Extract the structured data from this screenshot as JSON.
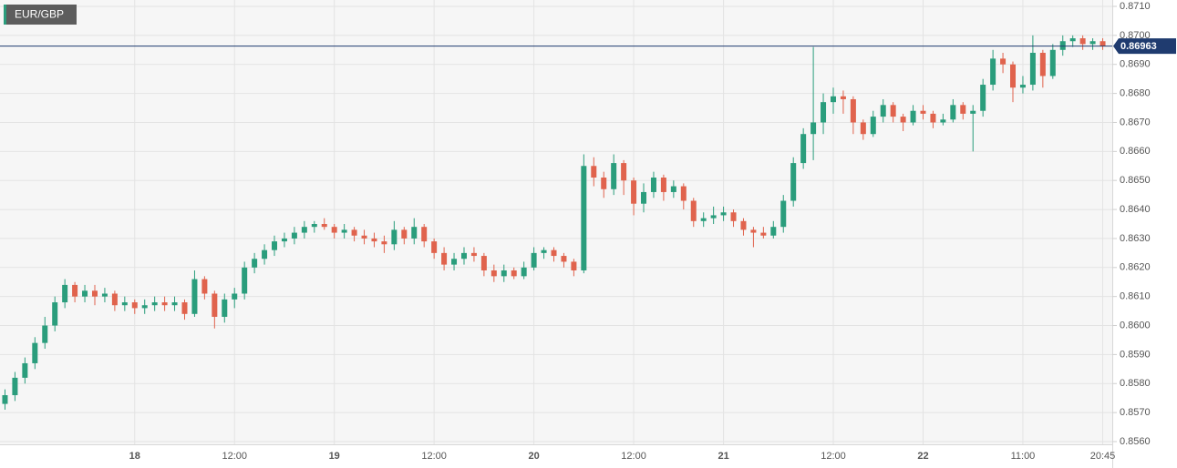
{
  "chart_data": {
    "type": "candlestick",
    "title": "EUR/GBP",
    "categories": [
      null,
      null,
      null,
      null,
      null,
      null,
      null,
      null,
      null,
      null,
      null,
      null,
      null,
      "18",
      null,
      null,
      null,
      null,
      null,
      null,
      null,
      null,
      null,
      "12:00",
      null,
      null,
      null,
      null,
      null,
      null,
      null,
      null,
      null,
      "19",
      null,
      null,
      null,
      null,
      null,
      null,
      null,
      null,
      null,
      "12:00",
      null,
      null,
      null,
      null,
      null,
      null,
      null,
      null,
      null,
      "20",
      null,
      null,
      null,
      null,
      null,
      null,
      null,
      null,
      null,
      "12:00",
      null,
      null,
      null,
      null,
      null,
      null,
      null,
      null,
      "21",
      null,
      null,
      null,
      null,
      null,
      null,
      null,
      null,
      null,
      null,
      "12:00",
      null,
      null,
      null,
      null,
      null,
      null,
      null,
      null,
      "22",
      null,
      null,
      null,
      null,
      null,
      null,
      null,
      null,
      null,
      "11:00",
      null,
      null,
      null,
      null,
      null,
      null,
      null,
      "20:45"
    ],
    "open": [
      0.8573,
      0.8576,
      0.8582,
      0.8587,
      0.8594,
      0.86,
      0.8608,
      0.8614,
      0.861,
      0.8612,
      0.861,
      0.8611,
      0.8607,
      0.8608,
      0.8606,
      0.8607,
      0.8608,
      0.8607,
      0.8608,
      0.8604,
      0.8616,
      0.8611,
      0.8603,
      0.8609,
      0.8611,
      0.862,
      0.8623,
      0.8626,
      0.8629,
      0.863,
      0.8632,
      0.8634,
      0.8635,
      0.8634,
      0.8632,
      0.8633,
      0.8631,
      0.863,
      0.8629,
      0.8628,
      0.8633,
      0.863,
      0.8634,
      0.8629,
      0.8625,
      0.8621,
      0.8623,
      0.8625,
      0.8624,
      0.8619,
      0.8617,
      0.8619,
      0.8617,
      0.862,
      0.8625,
      0.8626,
      0.8624,
      0.8622,
      0.8619,
      0.8655,
      0.8651,
      0.8647,
      0.8656,
      0.865,
      0.8642,
      0.8646,
      0.8651,
      0.8646,
      0.8648,
      0.8643,
      0.8636,
      0.8637,
      0.8638,
      0.8639,
      0.8636,
      0.8633,
      0.8632,
      0.8631,
      0.8634,
      0.8643,
      0.8656,
      0.8666,
      0.867,
      0.8677,
      0.8679,
      0.8678,
      0.867,
      0.8666,
      0.8672,
      0.8676,
      0.8672,
      0.867,
      0.8674,
      0.8673,
      0.867,
      0.8671,
      0.8676,
      0.8673,
      0.8674,
      0.8683,
      0.8692,
      0.869,
      0.8682,
      0.8683,
      0.8694,
      0.8686,
      0.8695,
      0.8698,
      0.8699,
      0.8697,
      0.8698
    ],
    "high": [
      0.8578,
      0.8584,
      0.8589,
      0.8596,
      0.8603,
      0.861,
      0.8616,
      0.8615,
      0.8614,
      0.8614,
      0.8613,
      0.8612,
      0.861,
      0.8609,
      0.8609,
      0.861,
      0.861,
      0.861,
      0.8609,
      0.8619,
      0.8617,
      0.8612,
      0.8611,
      0.8613,
      0.8622,
      0.8625,
      0.8628,
      0.8631,
      0.8632,
      0.8634,
      0.8636,
      0.8636,
      0.8637,
      0.8635,
      0.8635,
      0.8634,
      0.8633,
      0.8632,
      0.8631,
      0.8636,
      0.8634,
      0.8637,
      0.8635,
      0.863,
      0.8627,
      0.8625,
      0.8627,
      0.8627,
      0.8625,
      0.8621,
      0.8621,
      0.862,
      0.8622,
      0.8627,
      0.8627,
      0.8627,
      0.8625,
      0.8623,
      0.8659,
      0.8658,
      0.8653,
      0.8659,
      0.8657,
      0.8651,
      0.8649,
      0.8653,
      0.8652,
      0.865,
      0.8649,
      0.8644,
      0.8639,
      0.8641,
      0.8641,
      0.864,
      0.8637,
      0.8634,
      0.8634,
      0.8636,
      0.8645,
      0.8658,
      0.8668,
      0.8696,
      0.868,
      0.8682,
      0.8681,
      0.8679,
      0.8671,
      0.8674,
      0.8678,
      0.8677,
      0.8673,
      0.8676,
      0.8676,
      0.8674,
      0.8673,
      0.8678,
      0.8677,
      0.8676,
      0.8685,
      0.8695,
      0.8694,
      0.8691,
      0.8686,
      0.87,
      0.8695,
      0.8697,
      0.87,
      0.87,
      0.87,
      0.8699,
      0.8699
    ],
    "low": [
      0.8571,
      0.8574,
      0.858,
      0.8585,
      0.8592,
      0.8598,
      0.8606,
      0.8608,
      0.8608,
      0.8607,
      0.8608,
      0.8605,
      0.8605,
      0.8604,
      0.8604,
      0.8605,
      0.8605,
      0.8605,
      0.8602,
      0.8603,
      0.8609,
      0.8599,
      0.8601,
      0.8606,
      0.8609,
      0.8618,
      0.8621,
      0.8624,
      0.8627,
      0.8628,
      0.863,
      0.8632,
      0.8633,
      0.863,
      0.863,
      0.8629,
      0.8628,
      0.8627,
      0.8625,
      0.8626,
      0.8628,
      0.8628,
      0.8627,
      0.8623,
      0.8619,
      0.8619,
      0.8621,
      0.8622,
      0.8617,
      0.8615,
      0.8615,
      0.8616,
      0.8616,
      0.8619,
      0.8623,
      0.8622,
      0.862,
      0.8617,
      0.8618,
      0.8648,
      0.8644,
      0.8645,
      0.8645,
      0.8638,
      0.8639,
      0.8644,
      0.8643,
      0.8644,
      0.864,
      0.8634,
      0.8634,
      0.8635,
      0.8636,
      0.8634,
      0.8631,
      0.8627,
      0.863,
      0.863,
      0.8632,
      0.8641,
      0.8654,
      0.8657,
      0.8666,
      0.8673,
      0.8673,
      0.8666,
      0.8664,
      0.8665,
      0.867,
      0.867,
      0.8667,
      0.8669,
      0.8671,
      0.8668,
      0.8669,
      0.867,
      0.8671,
      0.866,
      0.8672,
      0.8681,
      0.8687,
      0.8677,
      0.868,
      0.8681,
      0.8682,
      0.8685,
      0.8693,
      0.8696,
      0.8695,
      0.8695,
      0.8695
    ],
    "close": [
      0.8576,
      0.8582,
      0.8587,
      0.8594,
      0.86,
      0.8608,
      0.8614,
      0.861,
      0.8612,
      0.861,
      0.8611,
      0.8607,
      0.8608,
      0.8606,
      0.8607,
      0.8608,
      0.8607,
      0.8608,
      0.8604,
      0.8616,
      0.8611,
      0.8603,
      0.8609,
      0.8611,
      0.862,
      0.8623,
      0.8626,
      0.8629,
      0.863,
      0.8632,
      0.8634,
      0.8635,
      0.8634,
      0.8632,
      0.8633,
      0.8631,
      0.863,
      0.8629,
      0.8628,
      0.8633,
      0.863,
      0.8634,
      0.8629,
      0.8625,
      0.8621,
      0.8623,
      0.8625,
      0.8624,
      0.8619,
      0.8617,
      0.8619,
      0.8617,
      0.862,
      0.8625,
      0.8626,
      0.8624,
      0.8622,
      0.8619,
      0.8655,
      0.8651,
      0.8647,
      0.8656,
      0.865,
      0.8642,
      0.8646,
      0.8651,
      0.8646,
      0.8648,
      0.8643,
      0.8636,
      0.8637,
      0.8638,
      0.8639,
      0.8636,
      0.8633,
      0.8632,
      0.8631,
      0.8634,
      0.8643,
      0.8656,
      0.8666,
      0.867,
      0.8677,
      0.8679,
      0.8678,
      0.867,
      0.8666,
      0.8672,
      0.8676,
      0.8672,
      0.867,
      0.8674,
      0.8673,
      0.867,
      0.8671,
      0.8676,
      0.8673,
      0.8674,
      0.8683,
      0.8692,
      0.869,
      0.8682,
      0.8683,
      0.8694,
      0.8686,
      0.8695,
      0.8698,
      0.8699,
      0.8697,
      0.8698,
      0.86963
    ],
    "up_color": "#2a9d7c",
    "down_color": "#e0634d",
    "last_price": 0.86963,
    "last_price_color": "#1f3b6f",
    "ylim": [
      0.856,
      0.871
    ],
    "yticks": [
      {
        "value": 0.856,
        "label": "0.8560"
      },
      {
        "value": 0.857,
        "label": "0.8570"
      },
      {
        "value": 0.858,
        "label": "0.8580"
      },
      {
        "value": 0.859,
        "label": "0.8590"
      },
      {
        "value": 0.86,
        "label": "0.8600"
      },
      {
        "value": 0.861,
        "label": "0.8610"
      },
      {
        "value": 0.862,
        "label": "0.8620"
      },
      {
        "value": 0.863,
        "label": "0.8630"
      },
      {
        "value": 0.864,
        "label": "0.8640"
      },
      {
        "value": 0.865,
        "label": "0.8650"
      },
      {
        "value": 0.866,
        "label": "0.8660"
      },
      {
        "value": 0.867,
        "label": "0.8670"
      },
      {
        "value": 0.868,
        "label": "0.8680"
      },
      {
        "value": 0.869,
        "label": "0.8690"
      },
      {
        "value": 0.87,
        "label": "0.8700"
      },
      {
        "value": 0.871,
        "label": "0.8710"
      }
    ],
    "grid": true
  }
}
